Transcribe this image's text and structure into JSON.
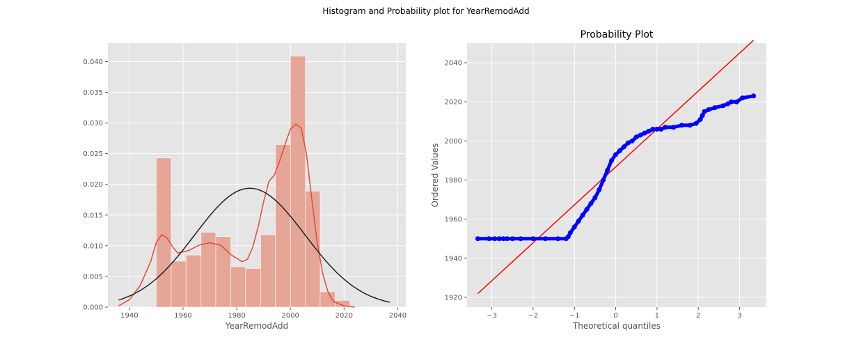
{
  "figure": {
    "suptitle": "Histogram and Probability plot for YearRemodAdd"
  },
  "colors": {
    "panel_bg": "#e5e5e5",
    "grid": "#ffffff",
    "hist_fill": "#e5a698",
    "kde_line": "#e24a33",
    "normal_line": "#222222",
    "points": "#0000ff",
    "fit_line": "#ff0000"
  },
  "chart_data": [
    {
      "type": "bar",
      "subtype": "histogram_with_kde_and_normal_fit",
      "title": "",
      "xlabel": "YearRemodAdd",
      "ylabel": "",
      "xlim": [
        1932,
        2043
      ],
      "ylim": [
        0,
        0.043
      ],
      "xticks": [
        1940,
        1960,
        1980,
        2000,
        2020,
        2040
      ],
      "yticks": [
        0.0,
        0.005,
        0.01,
        0.015,
        0.02,
        0.025,
        0.03,
        0.035,
        0.04
      ],
      "ytick_labels": [
        "0.000",
        "0.005",
        "0.010",
        "0.015",
        "0.020",
        "0.025",
        "0.030",
        "0.035",
        "0.040"
      ],
      "grid": true,
      "bins": [
        {
          "x0": 1950.0,
          "x1": 1955.6,
          "density": 0.0243
        },
        {
          "x0": 1955.6,
          "x1": 1961.1,
          "density": 0.0075
        },
        {
          "x0": 1961.1,
          "x1": 1966.7,
          "density": 0.0085
        },
        {
          "x0": 1966.7,
          "x1": 1972.2,
          "density": 0.0122
        },
        {
          "x0": 1972.2,
          "x1": 1977.8,
          "density": 0.0115
        },
        {
          "x0": 1977.8,
          "x1": 1983.3,
          "density": 0.0066
        },
        {
          "x0": 1983.3,
          "x1": 1988.9,
          "density": 0.0063
        },
        {
          "x0": 1988.9,
          "x1": 1994.4,
          "density": 0.0118
        },
        {
          "x0": 1994.4,
          "x1": 2000.0,
          "density": 0.0265
        },
        {
          "x0": 2000.0,
          "x1": 2005.6,
          "density": 0.0409
        },
        {
          "x0": 2005.6,
          "x1": 2011.1,
          "density": 0.0189
        },
        {
          "x0": 2011.1,
          "x1": 2016.7,
          "density": 0.0025
        },
        {
          "x0": 2016.7,
          "x1": 2022.2,
          "density": 0.0011
        }
      ],
      "kde": {
        "x": [
          1936,
          1940,
          1944,
          1948,
          1950,
          1952,
          1954,
          1956,
          1958,
          1962,
          1966,
          1970,
          1974,
          1978,
          1982,
          1984,
          1986,
          1988,
          1990,
          1992,
          1994,
          1996,
          1998,
          2000,
          2002,
          2004,
          2006,
          2008,
          2010,
          2012,
          2014,
          2016,
          2020,
          2024
        ],
        "y": [
          0.0002,
          0.0012,
          0.0035,
          0.0075,
          0.0105,
          0.0118,
          0.0113,
          0.0099,
          0.0088,
          0.0092,
          0.0101,
          0.0105,
          0.0101,
          0.0085,
          0.0074,
          0.0078,
          0.0098,
          0.0131,
          0.0171,
          0.0205,
          0.0215,
          0.0238,
          0.0265,
          0.029,
          0.0298,
          0.0292,
          0.025,
          0.0175,
          0.0105,
          0.0055,
          0.0025,
          0.0009,
          0.0002,
          0.0
        ]
      },
      "normal_fit": {
        "mean": 1984.9,
        "sd": 20.6,
        "x_range": [
          1936,
          2037
        ]
      }
    },
    {
      "type": "scatter",
      "subtype": "probability_plot",
      "title": "Probability Plot",
      "xlabel": "Theoretical quantiles",
      "ylabel": "Ordered Values",
      "xlim": [
        -3.6,
        3.65
      ],
      "ylim": [
        1915,
        2050
      ],
      "xticks": [
        -3,
        -2,
        -1,
        0,
        1,
        2,
        3
      ],
      "xtick_labels": [
        "−3",
        "−2",
        "−1",
        "0",
        "1",
        "2",
        "3"
      ],
      "yticks": [
        1920,
        1940,
        1960,
        1980,
        2000,
        2020,
        2040
      ],
      "grid": true,
      "points": [
        [
          -3.34,
          1950
        ],
        [
          -3.07,
          1950
        ],
        [
          -2.93,
          1950
        ],
        [
          -2.82,
          1950
        ],
        [
          -2.72,
          1950
        ],
        [
          -2.63,
          1950
        ],
        [
          -2.5,
          1950
        ],
        [
          -2.3,
          1950
        ],
        [
          -2.0,
          1950
        ],
        [
          -1.7,
          1950
        ],
        [
          -1.4,
          1950
        ],
        [
          -1.2,
          1950
        ],
        [
          -1.15,
          1951
        ],
        [
          -1.1,
          1953
        ],
        [
          -1.0,
          1956
        ],
        [
          -0.9,
          1959
        ],
        [
          -0.8,
          1962
        ],
        [
          -0.7,
          1965
        ],
        [
          -0.6,
          1968
        ],
        [
          -0.5,
          1971
        ],
        [
          -0.4,
          1975
        ],
        [
          -0.3,
          1980
        ],
        [
          -0.2,
          1985
        ],
        [
          -0.1,
          1990
        ],
        [
          0.0,
          1993
        ],
        [
          0.1,
          1995
        ],
        [
          0.2,
          1997
        ],
        [
          0.3,
          1999
        ],
        [
          0.4,
          2000
        ],
        [
          0.5,
          2002
        ],
        [
          0.6,
          2003
        ],
        [
          0.7,
          2004
        ],
        [
          0.8,
          2005
        ],
        [
          0.9,
          2006
        ],
        [
          1.0,
          2006
        ],
        [
          1.1,
          2006
        ],
        [
          1.2,
          2007
        ],
        [
          1.4,
          2007
        ],
        [
          1.6,
          2008
        ],
        [
          1.8,
          2008
        ],
        [
          1.95,
          2009
        ],
        [
          2.05,
          2011
        ],
        [
          2.1,
          2013
        ],
        [
          2.15,
          2015
        ],
        [
          2.25,
          2016
        ],
        [
          2.4,
          2017
        ],
        [
          2.6,
          2018
        ],
        [
          2.72,
          2019
        ],
        [
          2.8,
          2020
        ],
        [
          2.93,
          2020
        ],
        [
          3.07,
          2022
        ],
        [
          3.34,
          2023
        ]
      ],
      "fit_line": {
        "slope": 19.4,
        "intercept": 1986.7,
        "x_range": [
          -3.34,
          3.34
        ]
      }
    }
  ]
}
